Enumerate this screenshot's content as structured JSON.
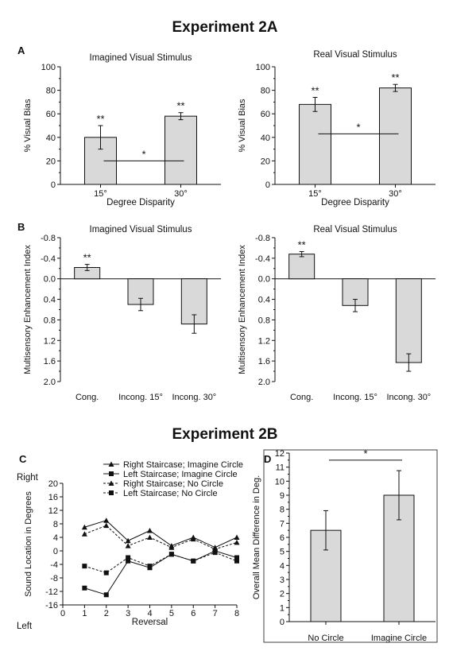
{
  "headings": {
    "exp_a": "Experiment 2A",
    "exp_b": "Experiment 2B"
  },
  "panel_letters": {
    "a": "A",
    "b": "B",
    "c": "C",
    "d": "D"
  },
  "colors": {
    "bar_fill": "#d9d9d9",
    "stroke": "#111111"
  },
  "chart_data": [
    {
      "id": "A1",
      "type": "bar",
      "title": "Imagined Visual Stimulus",
      "xlabel": "Degree Disparity",
      "ylabel": "% Visual Bias",
      "categories": [
        "15°",
        "30°"
      ],
      "values": [
        40,
        58
      ],
      "errors": [
        10,
        3
      ],
      "ylim": [
        0,
        100
      ],
      "yticks": [
        "0",
        "20",
        "40",
        "60",
        "80",
        "100"
      ],
      "star_labels": [
        "**",
        "**"
      ],
      "comparison": {
        "label": "*",
        "y": 20
      }
    },
    {
      "id": "A2",
      "type": "bar",
      "title": "Real Visual Stimulus",
      "xlabel": "Degree Disparity",
      "ylabel": "% Visual Bias",
      "categories": [
        "15°",
        "30°"
      ],
      "values": [
        68,
        82
      ],
      "errors": [
        6,
        3
      ],
      "ylim": [
        0,
        100
      ],
      "yticks": [
        "0",
        "20",
        "40",
        "60",
        "80",
        "100"
      ],
      "star_labels": [
        "**",
        "**"
      ],
      "comparison": {
        "label": "*",
        "y": 43
      }
    },
    {
      "id": "B1",
      "type": "bar",
      "title": "Imagined Visual Stimulus",
      "xlabel": "",
      "ylabel": "Multisensory Enhancement Index",
      "categories": [
        "Cong.",
        "Incong. 15°",
        "Incong. 30°"
      ],
      "values": [
        -0.22,
        0.5,
        0.88
      ],
      "errors": [
        0.06,
        0.12,
        0.18
      ],
      "ylim": [
        -0.8,
        2.0
      ],
      "inverted_axis": true,
      "yticks": [
        "-0.8",
        "-0.4",
        "0.0",
        "0.4",
        "0.8",
        "1.2",
        "1.6",
        "2.0"
      ],
      "star_labels": [
        "**",
        "",
        ""
      ]
    },
    {
      "id": "B2",
      "type": "bar",
      "title": "Real Visual Stimulus",
      "xlabel": "",
      "ylabel": "Multisensory Enhancement Index",
      "categories": [
        "Cong.",
        "Incong. 15°",
        "Incong. 30°"
      ],
      "values": [
        -0.48,
        0.52,
        1.63
      ],
      "errors": [
        0.05,
        0.12,
        0.17
      ],
      "ylim": [
        -0.8,
        2.0
      ],
      "inverted_axis": true,
      "yticks": [
        "-0.8",
        "-0.4",
        "0.0",
        "0.4",
        "0.8",
        "1.2",
        "1.6",
        "2.0"
      ],
      "star_labels": [
        "**",
        "",
        ""
      ]
    },
    {
      "id": "C",
      "type": "line",
      "title": "",
      "xlabel": "Reversal",
      "ylabel": "Sound Location in Degrees",
      "x": [
        1,
        2,
        3,
        4,
        5,
        6,
        7,
        8
      ],
      "xlim": [
        0,
        8
      ],
      "ylim": [
        -16,
        20
      ],
      "xticks": [
        "0",
        "1",
        "2",
        "3",
        "4",
        "5",
        "6",
        "7",
        "8"
      ],
      "yticks": [
        "-16",
        "-12",
        "-8",
        "-4",
        "0",
        "4",
        "8",
        "12",
        "16",
        "20"
      ],
      "axis_end_labels": {
        "top": "Right",
        "bottom": "Left"
      },
      "legend_position": "top-right",
      "series": [
        {
          "name": "Right Staircase; Imagine Circle",
          "marker": "triangle",
          "dashed": false,
          "values": [
            7,
            9,
            3,
            6,
            1.5,
            4,
            1,
            4
          ]
        },
        {
          "name": "Left Staircase; Imagine Circle",
          "marker": "square",
          "dashed": false,
          "values": [
            -11,
            -13,
            -3,
            -5,
            -1,
            -3,
            0,
            -2
          ]
        },
        {
          "name": "Right Staircase; No Circle",
          "marker": "triangle",
          "dashed": true,
          "values": [
            5,
            7.5,
            1.5,
            4,
            1,
            3.5,
            0.5,
            2.5
          ]
        },
        {
          "name": "Left Staircase; No Circle",
          "marker": "square",
          "dashed": true,
          "values": [
            -4.5,
            -6.5,
            -2,
            -4.5,
            -1,
            -3,
            -0.5,
            -3
          ]
        }
      ]
    },
    {
      "id": "D",
      "type": "bar",
      "title": "",
      "xlabel": "",
      "ylabel": "Overall Mean Difference in Deg.",
      "categories": [
        "No Circle",
        "Imagine Circle"
      ],
      "values": [
        6.5,
        9.0
      ],
      "errors": [
        1.4,
        1.75
      ],
      "ylim": [
        0,
        12
      ],
      "yticks": [
        "0",
        "1",
        "2",
        "3",
        "4",
        "5",
        "6",
        "7",
        "8",
        "9",
        "10",
        "11",
        "12"
      ],
      "comparison": {
        "label": "*",
        "y": 11.5
      }
    }
  ]
}
